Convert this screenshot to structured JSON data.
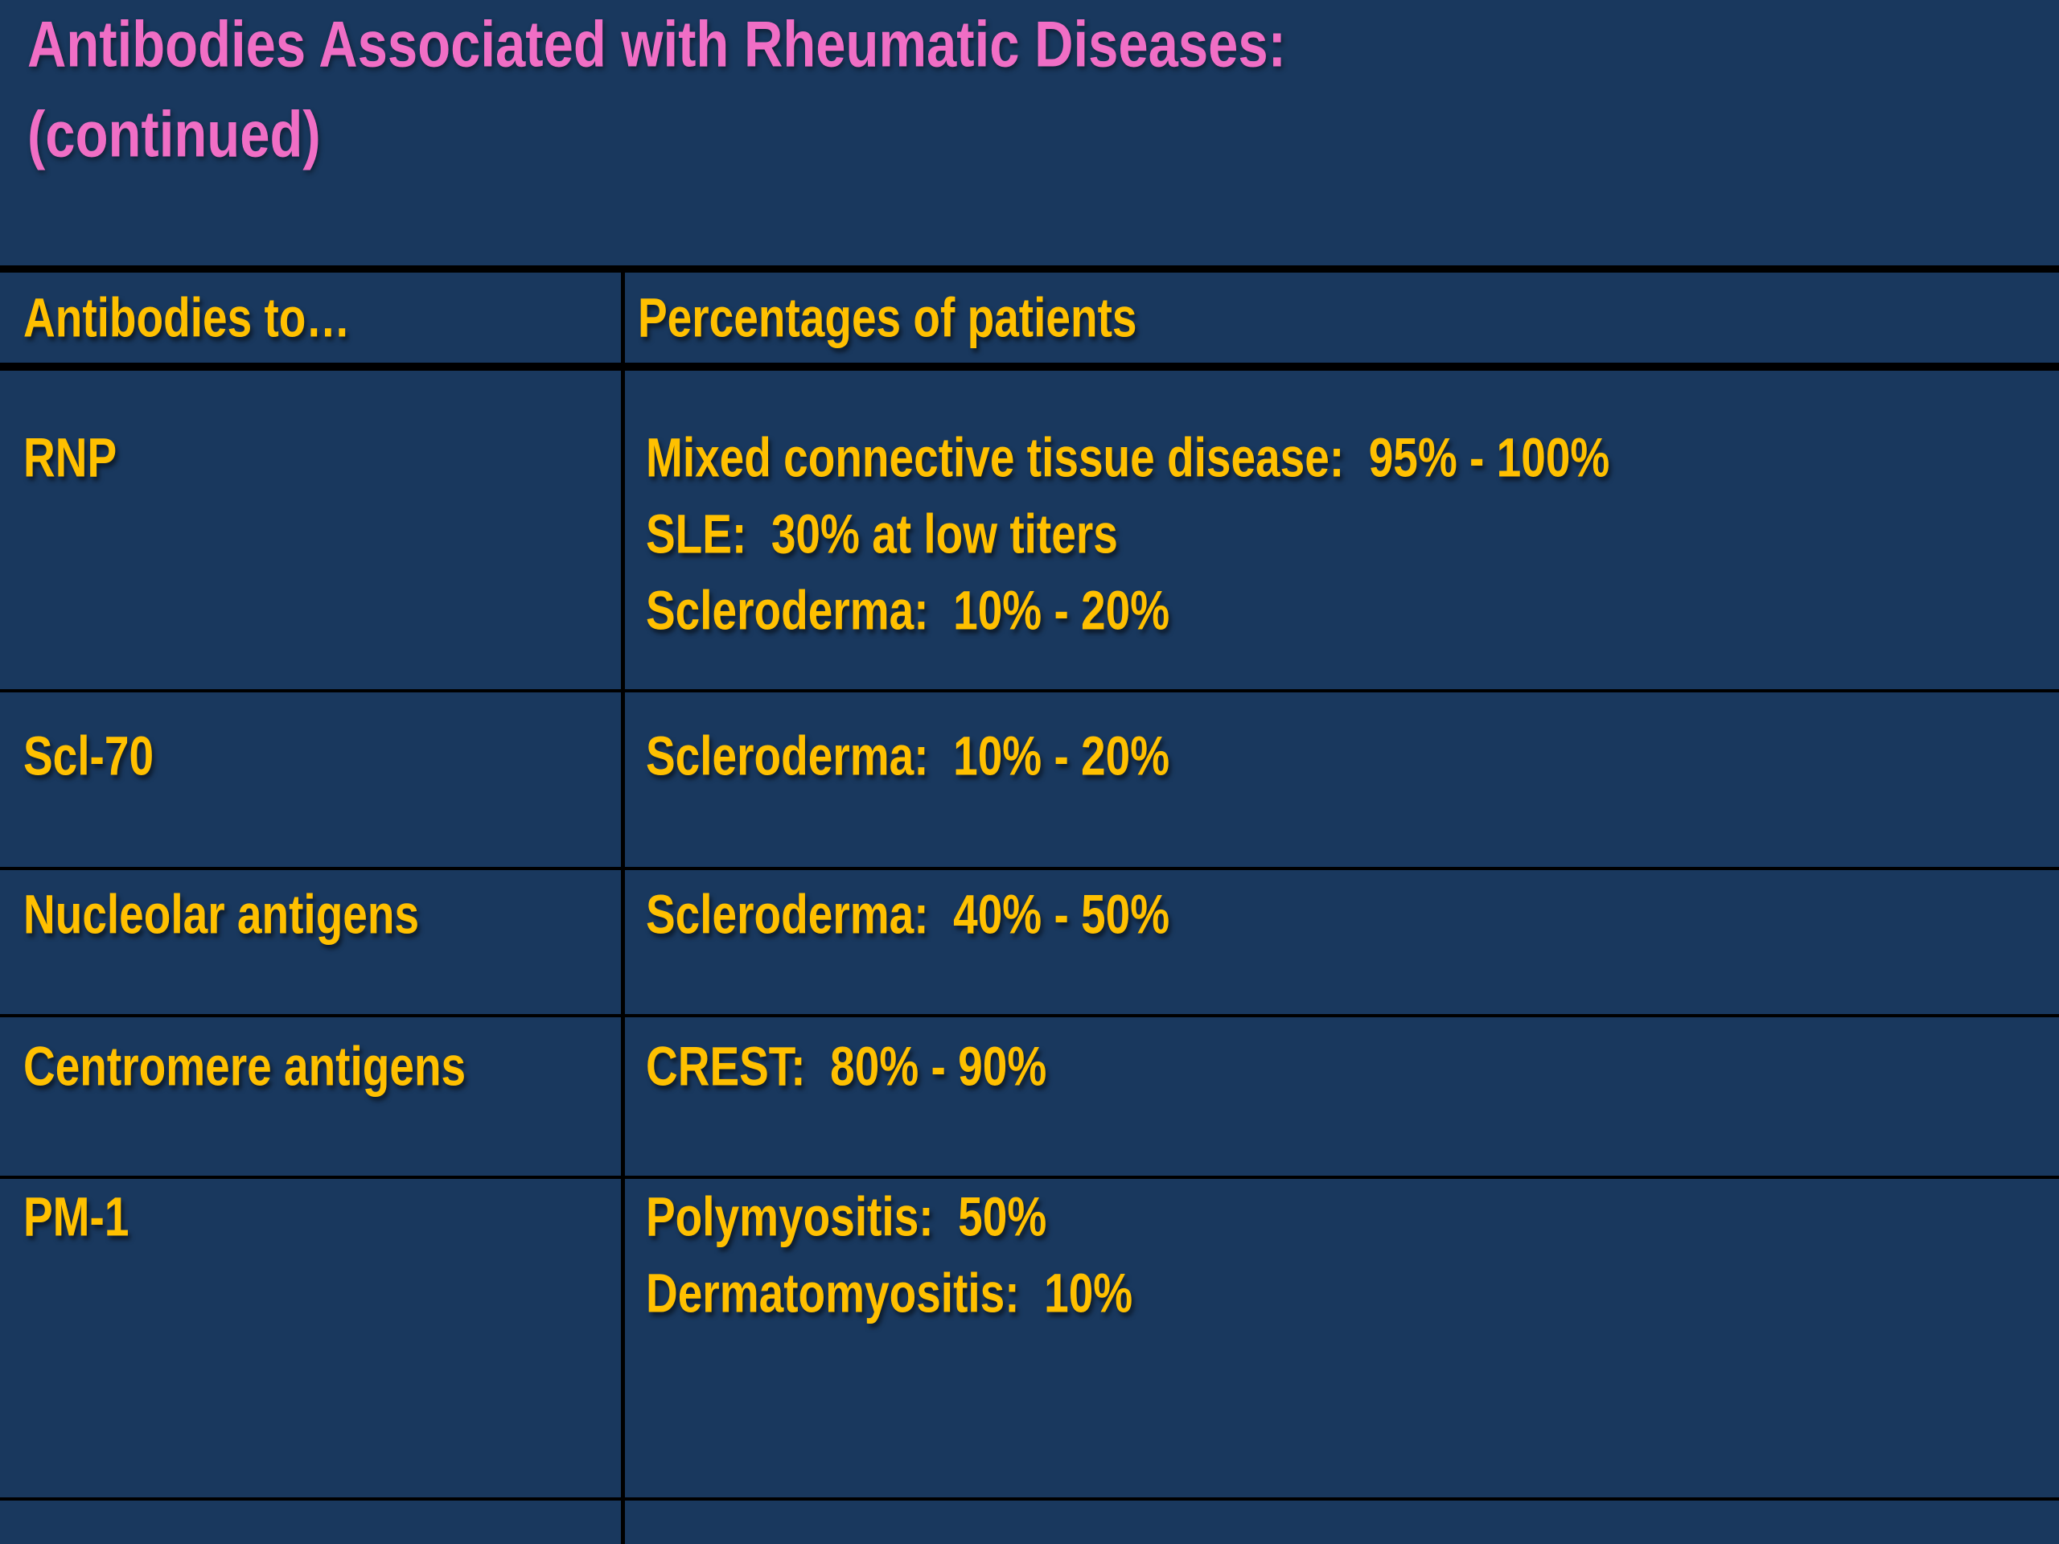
{
  "colors": {
    "background": "#19385E",
    "title_pink": "#F06EC5",
    "text_gold": "#FFC000",
    "table_border": "#000000"
  },
  "slide": {
    "title_line1": "Antibodies Associated with Rheumatic Diseases:",
    "title_line2": "(continued)"
  },
  "table": {
    "columns": [
      "Antibodies to…",
      "Percentages of patients"
    ],
    "rows": [
      {
        "antibody": "RNP",
        "findings": [
          "Mixed connective tissue disease:  95% - 100%",
          "SLE:  30% at low titers",
          "Scleroderma:  10% - 20%"
        ]
      },
      {
        "antibody": "Scl-70",
        "findings": [
          "Scleroderma:  10% - 20%"
        ]
      },
      {
        "antibody": "Nucleolar antigens",
        "findings": [
          "Scleroderma:  40% - 50%"
        ]
      },
      {
        "antibody": "Centromere antigens",
        "findings": [
          "CREST:  80% - 90%"
        ]
      },
      {
        "antibody": "PM-1",
        "findings": [
          "Polymyositis:  50%",
          "Dermatomyositis:  10%"
        ]
      }
    ]
  }
}
